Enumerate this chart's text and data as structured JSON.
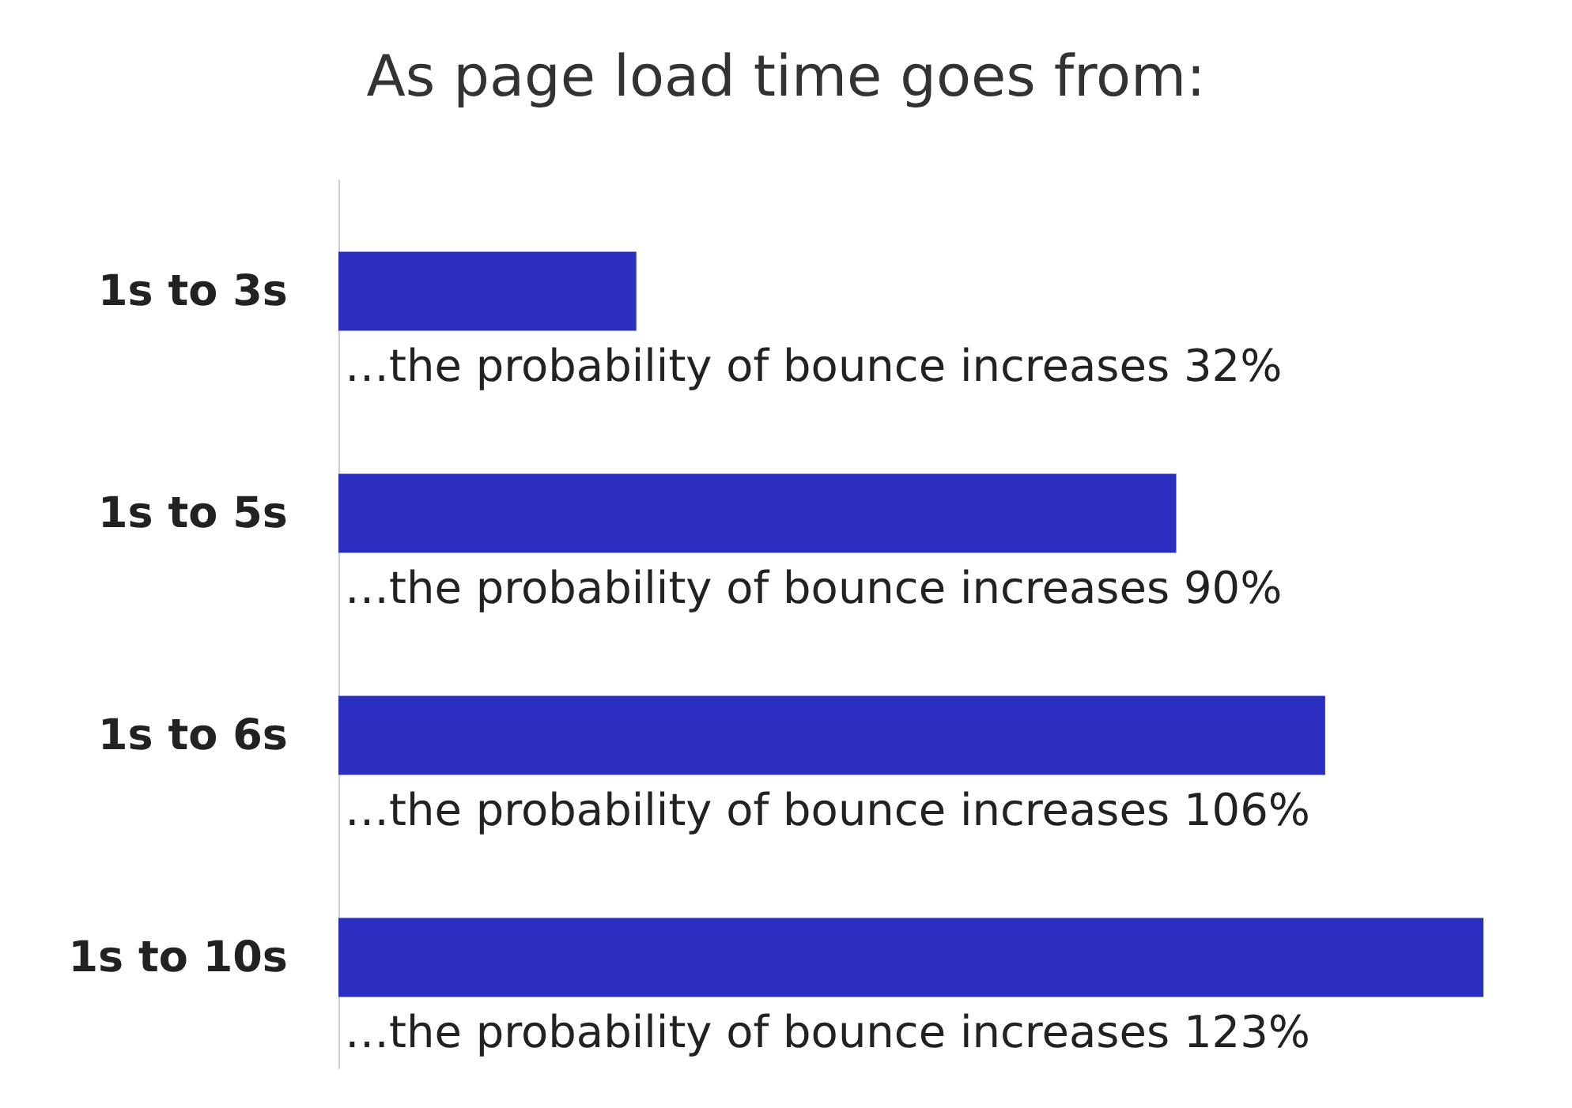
{
  "chart_data": {
    "type": "bar",
    "orientation": "horizontal",
    "title": "As page load time goes from:",
    "categories": [
      "1s to 3s",
      "1s to 5s",
      "1s to 6s",
      "1s to 10s"
    ],
    "values": [
      32,
      90,
      106,
      123
    ],
    "color": "#2b2fbf",
    "value_labels": [
      "…the probability of bounce increases 32%",
      "…the probability of bounce increases 90%",
      "…the probability of bounce increases 106%",
      "…the probability of bounce increases 123%"
    ]
  }
}
